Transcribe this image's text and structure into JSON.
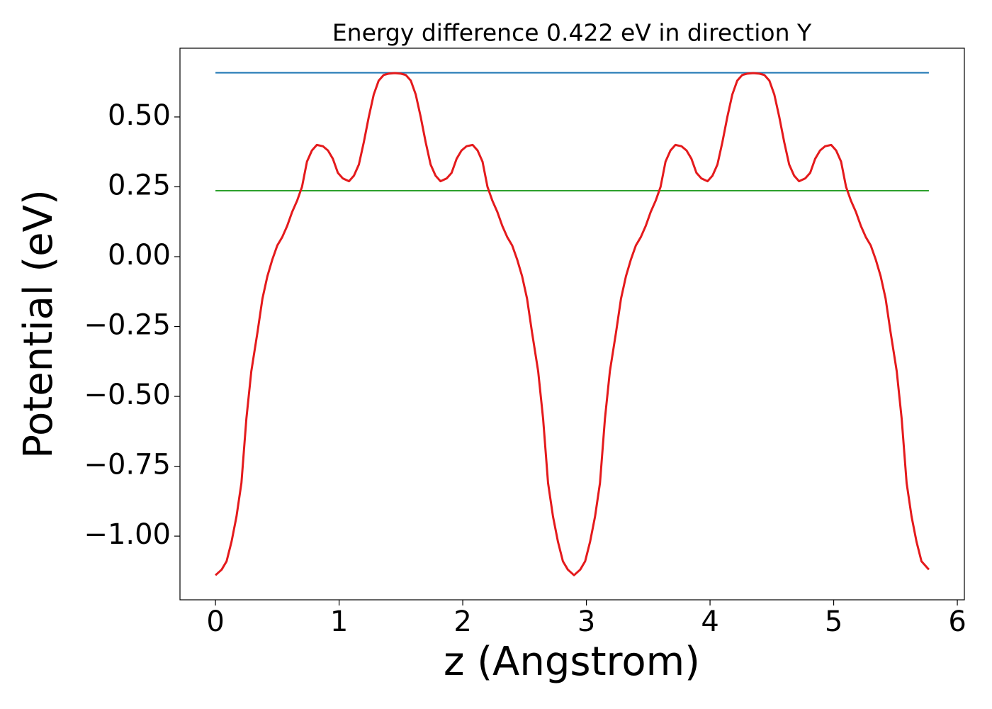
{
  "chart_data": {
    "type": "line",
    "title": "Energy difference 0.422 eV in direction Y",
    "xlabel": "z (Angstrom)",
    "ylabel": "Potential (eV)",
    "xlim": [
      -0.287,
      6.057
    ],
    "ylim": [
      -1.228,
      0.746
    ],
    "xticks": [
      0,
      1,
      2,
      3,
      4,
      5,
      6
    ],
    "yticks": [
      {
        "value": -1.0,
        "label": "−1.00"
      },
      {
        "value": -0.75,
        "label": "−0.75"
      },
      {
        "value": -0.5,
        "label": "−0.50"
      },
      {
        "value": -0.25,
        "label": "−0.25"
      },
      {
        "value": 0,
        "label": "0.00"
      },
      {
        "value": 0.25,
        "label": "0.25"
      },
      {
        "value": 0.5,
        "label": "0.50"
      }
    ],
    "grid": false,
    "x": [
      0,
      0.05,
      0.09,
      0.13,
      0.17,
      0.21,
      0.25,
      0.29,
      0.34,
      0.38,
      0.42,
      0.46,
      0.5,
      0.54,
      0.58,
      0.62,
      0.66,
      0.7,
      0.74,
      0.78,
      0.82,
      0.87,
      0.91,
      0.95,
      0.99,
      1.03,
      1.08,
      1.12,
      1.16,
      1.2,
      1.24,
      1.28,
      1.32,
      1.36,
      1.4,
      1.45,
      1.5,
      1.54,
      1.58,
      1.62,
      1.66,
      1.7,
      1.74,
      1.78,
      1.82,
      1.87,
      1.91,
      1.95,
      1.99,
      2.03,
      2.08,
      2.12,
      2.16,
      2.2,
      2.24,
      2.28,
      2.32,
      2.36,
      2.4,
      2.44,
      2.48,
      2.52,
      2.56,
      2.61,
      2.65,
      2.69,
      2.73,
      2.77,
      2.81,
      2.85,
      2.9,
      2.95,
      2.99,
      3.03,
      3.07,
      3.11,
      3.15,
      3.19,
      3.24,
      3.28,
      3.32,
      3.36,
      3.4,
      3.44,
      3.48,
      3.52,
      3.56,
      3.6,
      3.64,
      3.68,
      3.72,
      3.77,
      3.81,
      3.85,
      3.89,
      3.93,
      3.98,
      4.02,
      4.06,
      4.1,
      4.14,
      4.18,
      4.22,
      4.26,
      4.3,
      4.35,
      4.4,
      4.44,
      4.48,
      4.52,
      4.56,
      4.6,
      4.64,
      4.68,
      4.72,
      4.77,
      4.81,
      4.85,
      4.89,
      4.93,
      4.98,
      5.02,
      5.06,
      5.1,
      5.14,
      5.18,
      5.22,
      5.26,
      5.3,
      5.34,
      5.38,
      5.42,
      5.46,
      5.51,
      5.55,
      5.59,
      5.63,
      5.67,
      5.71,
      5.77
    ],
    "series": [
      {
        "color": "#e41a1c",
        "values": [
          -1.14,
          -1.12,
          -1.09,
          -1.02,
          -0.93,
          -0.81,
          -0.58,
          -0.41,
          -0.27,
          -0.15,
          -0.07,
          -0.01,
          0.04,
          0.07,
          0.11,
          0.16,
          0.2,
          0.25,
          0.34,
          0.38,
          0.4,
          0.395,
          0.38,
          0.35,
          0.3,
          0.28,
          0.27,
          0.29,
          0.33,
          0.41,
          0.5,
          0.58,
          0.63,
          0.65,
          0.655,
          0.657,
          0.655,
          0.65,
          0.63,
          0.58,
          0.5,
          0.41,
          0.33,
          0.29,
          0.27,
          0.28,
          0.3,
          0.35,
          0.38,
          0.395,
          0.4,
          0.38,
          0.34,
          0.25,
          0.2,
          0.16,
          0.11,
          0.07,
          0.04,
          -0.01,
          -0.07,
          -0.15,
          -0.27,
          -0.41,
          -0.58,
          -0.81,
          -0.93,
          -1.02,
          -1.09,
          -1.12,
          -1.14,
          -1.12,
          -1.09,
          -1.02,
          -0.93,
          -0.81,
          -0.58,
          -0.41,
          -0.27,
          -0.15,
          -0.07,
          -0.01,
          0.04,
          0.07,
          0.11,
          0.16,
          0.2,
          0.25,
          0.34,
          0.38,
          0.4,
          0.395,
          0.38,
          0.35,
          0.3,
          0.28,
          0.27,
          0.29,
          0.33,
          0.41,
          0.5,
          0.58,
          0.63,
          0.65,
          0.655,
          0.657,
          0.655,
          0.65,
          0.63,
          0.58,
          0.5,
          0.41,
          0.33,
          0.29,
          0.27,
          0.28,
          0.3,
          0.35,
          0.38,
          0.395,
          0.4,
          0.38,
          0.34,
          0.25,
          0.2,
          0.16,
          0.11,
          0.07,
          0.04,
          -0.01,
          -0.07,
          -0.15,
          -0.27,
          -0.41,
          -0.58,
          -0.81,
          -0.93,
          -1.02,
          -1.09,
          -1.12
        ]
      }
    ],
    "hlines": [
      {
        "value": 0.658,
        "color": "#1f77b4"
      },
      {
        "value": 0.236,
        "color": "#2ca02c"
      }
    ]
  }
}
